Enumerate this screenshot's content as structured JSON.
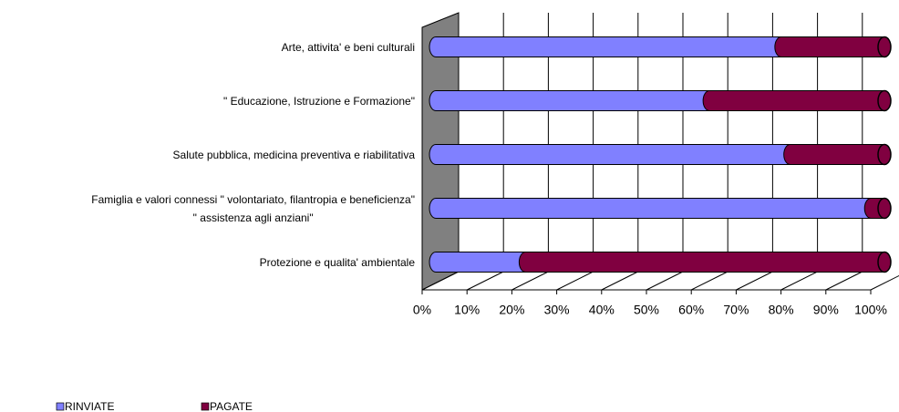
{
  "chart_data": {
    "type": "bar",
    "stacked": true,
    "categories": [
      "Arte, attivita' e beni culturali",
      "\" Educazione, Istruzione e Formazione\"",
      "Salute pubblica, medicina  preventiva e riabilitativa",
      "Famiglia e valori connessi \" volontariato, filantropia e beneficienza\"\n\" assistenza agli anziani\"",
      "Protezione e qualita' ambientale"
    ],
    "series": [
      {
        "name": "RINVIATE",
        "color": "#8080ff",
        "values": [
          77,
          61,
          79,
          97,
          20
        ]
      },
      {
        "name": "PAGATE",
        "color": "#800040",
        "values": [
          23,
          39,
          21,
          3,
          80
        ]
      }
    ],
    "xlim": [
      0,
      100
    ],
    "xticks": [
      {
        "value": 0,
        "label": "0%"
      },
      {
        "value": 10,
        "label": "10%"
      },
      {
        "value": 20,
        "label": "20%"
      },
      {
        "value": 30,
        "label": "30%"
      },
      {
        "value": 40,
        "label": "40%"
      },
      {
        "value": 50,
        "label": "50%"
      },
      {
        "value": 60,
        "label": "60%"
      },
      {
        "value": 70,
        "label": "70%"
      },
      {
        "value": 80,
        "label": "80%"
      },
      {
        "value": 90,
        "label": "90%"
      },
      {
        "value": 100,
        "label": "100%"
      }
    ],
    "grid": true,
    "legend": "bottom"
  }
}
